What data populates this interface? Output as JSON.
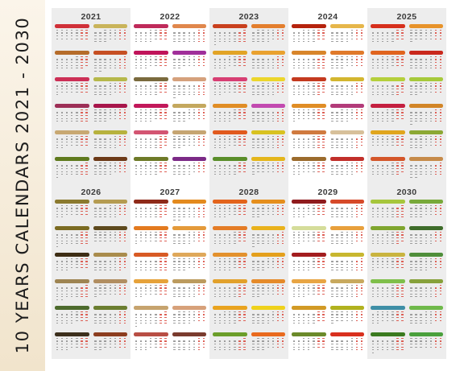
{
  "side_title": "10 YEARS CALENDARS 2021 - 2030",
  "years": [
    {
      "year": "2021",
      "months": [
        "#d03038",
        "#c9b45a",
        "#b56c2a",
        "#c64f23",
        "#cc2f56",
        "#b6b84a",
        "#9d2f57",
        "#a7154a",
        "#c8a872",
        "#b7b23e",
        "#5f7a1e",
        "#6c3a18"
      ]
    },
    {
      "year": "2022",
      "months": [
        "#bf2a5a",
        "#e0874c",
        "#c0145a",
        "#a02f9a",
        "#7a6a3d",
        "#d5a17c",
        "#c2185a",
        "#c4a85e",
        "#d35572",
        "#c6a572",
        "#6e7a28",
        "#7b2a86"
      ]
    },
    {
      "year": "2023",
      "months": [
        "#c9401e",
        "#e37e2d",
        "#e2a426",
        "#e9a12f",
        "#d73f73",
        "#ecd62b",
        "#e08d25",
        "#c24ab0",
        "#e15a1e",
        "#d8c221",
        "#5a8e2a",
        "#e4b61b"
      ]
    },
    {
      "year": "2024",
      "months": [
        "#b5230d",
        "#e6b64a",
        "#d8852b",
        "#e07a2b",
        "#c43a1f",
        "#d3b62f",
        "#e08d25",
        "#b33b7a",
        "#d07a3f",
        "#d7c09a",
        "#9b6b2c",
        "#c12f2a"
      ]
    },
    {
      "year": "2025",
      "months": [
        "#d62f1c",
        "#e7932a",
        "#e0641e",
        "#c9281c",
        "#b5cf3c",
        "#a6c93b",
        "#c41f3f",
        "#d28527",
        "#e0a51d",
        "#8ca834",
        "#d4562a",
        "#c68b4a"
      ]
    },
    {
      "year": "2026",
      "months": [
        "#8b7a2e",
        "#b59c52",
        "#7b6b22",
        "#5e4a1e",
        "#3d2d14",
        "#a98c4c",
        "#9e8452",
        "#b18e61",
        "#4d6b2d",
        "#6b7e30",
        "#3c2f1c",
        "#8c3d1f"
      ]
    },
    {
      "year": "2027",
      "months": [
        "#8f2b1a",
        "#e38a1e",
        "#e37a1f",
        "#e49a3a",
        "#d85a24",
        "#dfa85a",
        "#e6a23a",
        "#bc9b5e",
        "#c6a36e",
        "#d7a17a",
        "#b84e44",
        "#7a3b2e"
      ]
    },
    {
      "year": "2028",
      "months": [
        "#e3641c",
        "#e58f1c",
        "#e47c26",
        "#e9b21c",
        "#e3912d",
        "#e4a01c",
        "#e2a12b",
        "#e58b2a",
        "#e9a31f",
        "#efd21b",
        "#6b9e2a",
        "#e96a1e"
      ]
    },
    {
      "year": "2029",
      "months": [
        "#8f1b1d",
        "#d64a2a",
        "#d5dd9a",
        "#e8a03c",
        "#a31d1f",
        "#c8b72f",
        "#e8a544",
        "#c8a95e",
        "#d29a25",
        "#b1b21f",
        "#6b8a2a",
        "#d9301e"
      ]
    },
    {
      "year": "2030",
      "months": [
        "#a6c63c",
        "#78a93a",
        "#7fa52e",
        "#3e6c2a",
        "#c9b43f",
        "#4f8e3a",
        "#7fbf4a",
        "#87a13b",
        "#3f8fa6",
        "#6fb94a",
        "#3a7a1f",
        "#4aa03c"
      ]
    }
  ]
}
